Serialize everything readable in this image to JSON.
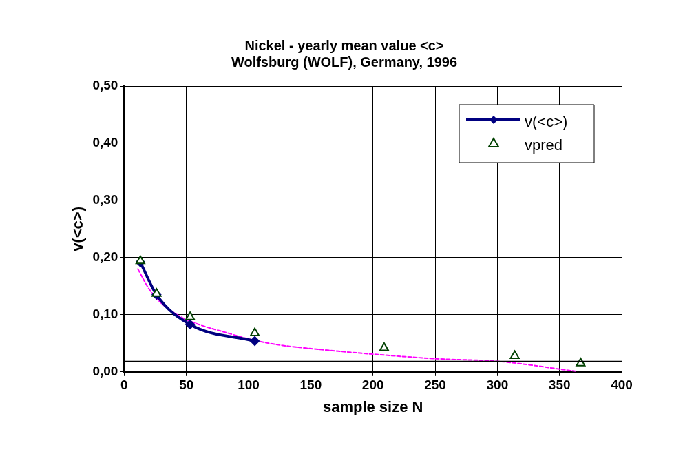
{
  "chart_data": {
    "type": "line",
    "title": "Nickel - yearly mean value <c>\nWolfsburg (WOLF), Germany, 1996",
    "xlabel": "sample size N",
    "ylabel": "v(<c>)",
    "series": [
      {
        "name": "v(<c>)",
        "color": "#000080",
        "marker": "diamond",
        "line_style": "solid",
        "x": [
          13,
          26,
          53,
          105
        ],
        "values": [
          0.192,
          0.135,
          0.083,
          0.054
        ]
      },
      {
        "name": "vpred",
        "type": "scatter",
        "color": "#004000",
        "marker": "triangle",
        "x": [
          13,
          26,
          53,
          105,
          209,
          314,
          367
        ],
        "values": [
          0.194,
          0.137,
          0.096,
          0.068,
          0.042,
          0.028,
          0.015
        ]
      },
      {
        "color": "#ff00ff",
        "marker": "none",
        "line_style": "dashed",
        "x": [
          11,
          20,
          30,
          45,
          60,
          80,
          105,
          125,
          149,
          200,
          251,
          303,
          363
        ],
        "values": [
          0.18,
          0.145,
          0.12,
          0.097,
          0.083,
          0.07,
          0.055,
          0.047,
          0.041,
          0.031,
          0.023,
          0.018,
          0.001
        ]
      }
    ],
    "xlim": [
      0,
      400
    ],
    "xticks": [
      0,
      50,
      100,
      150,
      200,
      250,
      300,
      350,
      400
    ],
    "ylim": [
      0,
      0.5
    ],
    "yticks": [
      {
        "value": 0,
        "label": "0,00"
      },
      {
        "value": 0.1,
        "label": "0,10"
      },
      {
        "value": 0.2,
        "label": "0,20"
      },
      {
        "value": 0.3,
        "label": "0,30"
      },
      {
        "value": 0.4,
        "label": "0,40"
      },
      {
        "value": 0.5,
        "label": "0,50"
      }
    ],
    "ref_lines": [
      {
        "axis": "y",
        "value": 0.018,
        "color": "#000000"
      }
    ],
    "grid": true,
    "legend": "top right"
  }
}
